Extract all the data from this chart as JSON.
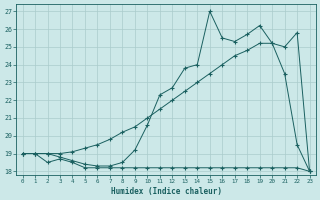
{
  "xlabel": "Humidex (Indice chaleur)",
  "background_color": "#cce8e8",
  "grid_color": "#aacccc",
  "line_color": "#1a6060",
  "xlim": [
    -0.5,
    23.5
  ],
  "ylim": [
    17.8,
    27.4
  ],
  "xticks": [
    0,
    1,
    2,
    3,
    4,
    5,
    6,
    7,
    8,
    9,
    10,
    11,
    12,
    13,
    14,
    15,
    16,
    17,
    18,
    19,
    20,
    21,
    22,
    23
  ],
  "yticks": [
    18,
    19,
    20,
    21,
    22,
    23,
    24,
    25,
    26,
    27
  ],
  "line1_x": [
    0,
    1,
    2,
    3,
    4,
    5,
    6,
    7,
    8,
    9,
    10,
    11,
    12,
    13,
    14,
    15,
    16,
    17,
    18,
    19,
    20,
    21,
    22,
    23
  ],
  "line1_y": [
    19.0,
    19.0,
    18.5,
    18.7,
    18.5,
    18.2,
    18.2,
    18.2,
    18.2,
    18.2,
    18.2,
    18.2,
    18.2,
    18.2,
    18.2,
    18.2,
    18.2,
    18.2,
    18.2,
    18.2,
    18.2,
    18.2,
    18.2,
    18.0
  ],
  "line2_x": [
    0,
    1,
    2,
    3,
    4,
    5,
    6,
    7,
    8,
    9,
    10,
    11,
    12,
    13,
    14,
    15,
    16,
    17,
    18,
    19,
    20,
    21,
    22,
    23
  ],
  "line2_y": [
    19.0,
    19.0,
    19.0,
    19.0,
    19.1,
    19.3,
    19.5,
    19.8,
    20.2,
    20.5,
    21.0,
    21.5,
    22.0,
    22.5,
    23.0,
    23.5,
    24.0,
    24.5,
    24.8,
    25.2,
    25.2,
    25.0,
    25.8,
    18.0
  ],
  "line3_x": [
    0,
    1,
    2,
    3,
    4,
    5,
    6,
    7,
    8,
    9,
    10,
    11,
    12,
    13,
    14,
    15,
    16,
    17,
    18,
    19,
    20,
    21,
    22,
    23
  ],
  "line3_y": [
    19.0,
    19.0,
    19.0,
    18.8,
    18.6,
    18.4,
    18.3,
    18.3,
    18.5,
    19.2,
    20.6,
    22.3,
    22.7,
    23.8,
    24.0,
    27.0,
    25.5,
    25.3,
    25.7,
    26.2,
    25.2,
    23.5,
    19.5,
    18.0
  ]
}
